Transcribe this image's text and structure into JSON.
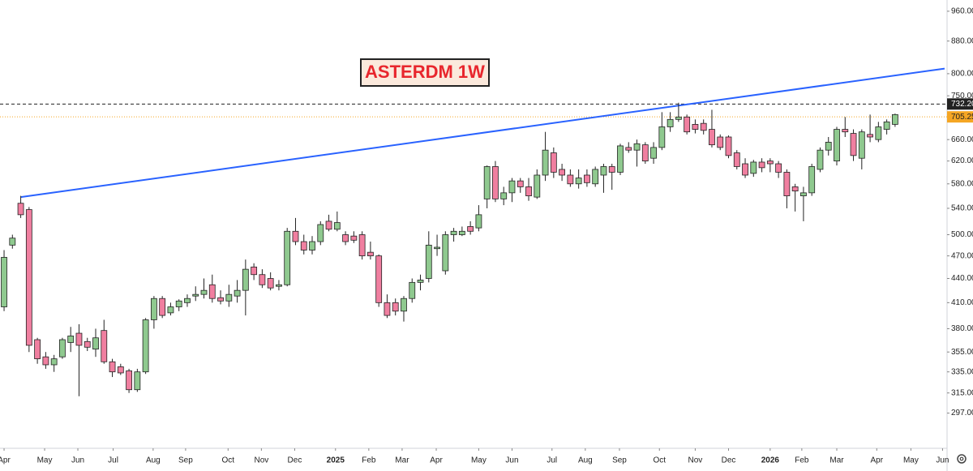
{
  "chart_data": {
    "type": "candlestick",
    "title": "ASTERDM 1W",
    "log": true,
    "up_color": "#8fc98f",
    "down_color": "#f07fa0",
    "xlim": [
      -0.49,
      112.95
    ],
    "ylim": [
      268,
      992
    ],
    "xticks": [
      {
        "value": 0,
        "label": "Apr"
      },
      {
        "value": 4.87,
        "label": "May"
      },
      {
        "value": 8.86,
        "label": "Jun"
      },
      {
        "value": 13.1,
        "label": "Jul"
      },
      {
        "value": 17.9,
        "label": "Aug"
      },
      {
        "value": 21.8,
        "label": "Sep"
      },
      {
        "value": 26.9,
        "label": "Oct"
      },
      {
        "value": 30.9,
        "label": "Nov"
      },
      {
        "value": 34.9,
        "label": "Dec"
      },
      {
        "value": 39.8,
        "label": "2025"
      },
      {
        "value": 43.8,
        "label": "Feb"
      },
      {
        "value": 47.8,
        "label": "Mar"
      },
      {
        "value": 51.9,
        "label": "Apr"
      },
      {
        "value": 57.0,
        "label": "May"
      },
      {
        "value": 61.0,
        "label": "Jun"
      },
      {
        "value": 65.8,
        "label": "Jul"
      },
      {
        "value": 69.8,
        "label": "Aug"
      },
      {
        "value": 73.9,
        "label": "Sep"
      },
      {
        "value": 78.7,
        "label": "Oct"
      },
      {
        "value": 83.0,
        "label": "Nov"
      },
      {
        "value": 87.0,
        "label": "Dec"
      },
      {
        "value": 92.0,
        "label": "2026"
      },
      {
        "value": 95.8,
        "label": "Feb"
      },
      {
        "value": 100.0,
        "label": "Mar"
      },
      {
        "value": 104.8,
        "label": "Apr"
      },
      {
        "value": 108.9,
        "label": "May"
      },
      {
        "value": 112.7,
        "label": "Jun"
      }
    ],
    "yticks": [
      {
        "value": 297,
        "label": "297.00"
      },
      {
        "value": 315,
        "label": "315.00"
      },
      {
        "value": 335,
        "label": "335.00"
      },
      {
        "value": 355,
        "label": "355.00"
      },
      {
        "value": 380,
        "label": "380.00"
      },
      {
        "value": 410,
        "label": "410.00"
      },
      {
        "value": 440,
        "label": "440.00"
      },
      {
        "value": 470,
        "label": "470.00"
      },
      {
        "value": 500,
        "label": "500.00"
      },
      {
        "value": 540,
        "label": "540.00"
      },
      {
        "value": 580,
        "label": "580.00"
      },
      {
        "value": 620,
        "label": "620.00"
      },
      {
        "value": 660,
        "label": "660.00"
      },
      {
        "value": 750,
        "label": "750.00"
      },
      {
        "value": 800,
        "label": "800.00"
      },
      {
        "value": 880,
        "label": "880.00"
      },
      {
        "value": 960,
        "label": "960.00"
      }
    ],
    "open": [
      405,
      485,
      548,
      538,
      368,
      350,
      342,
      350,
      365,
      375,
      366,
      358,
      378,
      345,
      340,
      336,
      318,
      335,
      390,
      415,
      398,
      405,
      410,
      418,
      420,
      432,
      416,
      412,
      418,
      425,
      455,
      445,
      440,
      430,
      432,
      505,
      490,
      478,
      490,
      520,
      508,
      500,
      498,
      500,
      475,
      470,
      410,
      410,
      400,
      415,
      435,
      440,
      480,
      450,
      500,
      500,
      512,
      510,
      555,
      610,
      555,
      565,
      585,
      575,
      558,
      595,
      635,
      605,
      595,
      580,
      595,
      580,
      595,
      610,
      600,
      645,
      640,
      650,
      625,
      645,
      685,
      700,
      705,
      690,
      692,
      680,
      665,
      665,
      635,
      615,
      598,
      618,
      620,
      615,
      600,
      575,
      560,
      565,
      605,
      640,
      620,
      680,
      672,
      625,
      670,
      660,
      680,
      690
    ],
    "high": [
      478,
      500,
      560,
      542,
      370,
      355,
      352,
      370,
      382,
      385,
      370,
      380,
      390,
      348,
      343,
      338,
      338,
      392,
      418,
      418,
      410,
      414,
      420,
      430,
      440,
      445,
      425,
      432,
      438,
      465,
      460,
      452,
      448,
      438,
      510,
      525,
      500,
      498,
      520,
      530,
      535,
      505,
      505,
      505,
      490,
      472,
      420,
      415,
      418,
      440,
      445,
      505,
      500,
      505,
      510,
      512,
      520,
      545,
      612,
      620,
      575,
      590,
      590,
      590,
      605,
      675,
      645,
      615,
      605,
      605,
      605,
      610,
      615,
      615,
      652,
      655,
      660,
      655,
      655,
      715,
      715,
      735,
      710,
      700,
      700,
      720,
      670,
      668,
      640,
      625,
      622,
      625,
      625,
      620,
      605,
      580,
      575,
      615,
      645,
      665,
      685,
      705,
      680,
      680,
      710,
      695,
      700,
      712
    ],
    "low": [
      400,
      480,
      525,
      355,
      343,
      338,
      335,
      348,
      355,
      312,
      356,
      350,
      343,
      330,
      332,
      315,
      316,
      333,
      380,
      392,
      395,
      400,
      405,
      412,
      415,
      410,
      408,
      405,
      410,
      395,
      438,
      428,
      425,
      425,
      430,
      485,
      472,
      472,
      485,
      505,
      505,
      485,
      488,
      465,
      465,
      405,
      392,
      395,
      388,
      410,
      425,
      435,
      470,
      445,
      490,
      498,
      500,
      505,
      540,
      550,
      545,
      550,
      565,
      552,
      555,
      585,
      590,
      585,
      575,
      572,
      575,
      575,
      565,
      570,
      595,
      635,
      610,
      615,
      615,
      640,
      675,
      695,
      670,
      672,
      670,
      645,
      640,
      625,
      605,
      590,
      592,
      600,
      600,
      590,
      540,
      535,
      520,
      560,
      600,
      630,
      612,
      665,
      620,
      605,
      655,
      655,
      670,
      685
    ],
    "close": [
      468,
      495,
      530,
      362,
      348,
      342,
      348,
      368,
      372,
      362,
      360,
      370,
      345,
      335,
      334,
      318,
      335,
      390,
      415,
      395,
      405,
      412,
      415,
      420,
      425,
      415,
      412,
      420,
      425,
      452,
      445,
      432,
      428,
      432,
      505,
      490,
      478,
      490,
      515,
      508,
      518,
      490,
      492,
      470,
      470,
      410,
      395,
      400,
      415,
      435,
      438,
      485,
      482,
      500,
      505,
      505,
      505,
      530,
      610,
      555,
      565,
      585,
      575,
      560,
      595,
      640,
      600,
      595,
      580,
      590,
      582,
      605,
      610,
      600,
      648,
      640,
      652,
      620,
      645,
      685,
      700,
      705,
      675,
      680,
      678,
      650,
      645,
      630,
      610,
      595,
      618,
      608,
      615,
      600,
      560,
      568,
      565,
      610,
      640,
      655,
      680,
      675,
      630,
      675,
      665,
      685,
      695,
      710
    ],
    "trendline": {
      "x": [
        2,
        112.95
      ],
      "values": [
        558,
        812
      ],
      "color": "#2962ff"
    },
    "price_lines": [
      {
        "value": 732.2,
        "label": "732.20",
        "color": "#222222",
        "text_color": "#ffffff",
        "style": "dashed"
      },
      {
        "value": 705.25,
        "label": "705.25",
        "color": "#f5a623",
        "text_color": "#222222",
        "style": "dotted"
      }
    ]
  }
}
